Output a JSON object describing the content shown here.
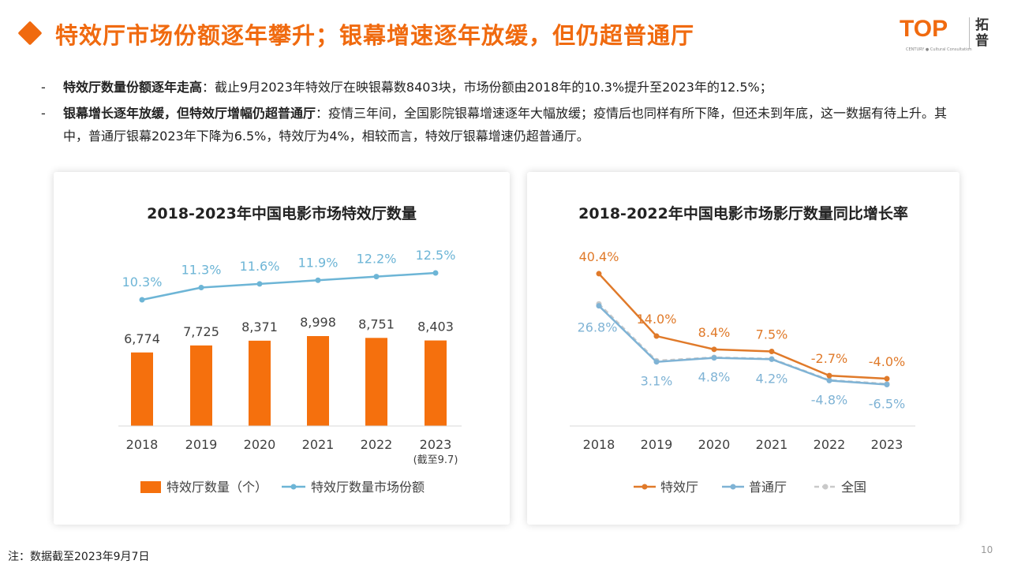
{
  "header": {
    "title": "特效厅市场份额逐年攀升；银幕增速逐年放缓，但仍超普通厅",
    "logo_text": "TOP",
    "logo_cn": "拓普",
    "logo_sub": "CENTURY ● Cultural Consultation"
  },
  "bullets": [
    {
      "bold": "特效厅数量份额逐年走高",
      "text": "：截止9月2023年特效厅在映银幕数8403块，市场份额由2018年的10.3%提升至2023年的12.5%；"
    },
    {
      "bold": "银幕增长逐年放缓，但特效厅增幅仍超普通厅",
      "text": "：疫情三年间，全国影院银幕增速逐年大幅放缓；疫情后也同样有所下降，但还未到年底，这一数据有待上升。其中，普通厅银幕2023年下降为6.5%，特效厅为4%，相较而言，特效厅银幕增速仍超普通厅。"
    }
  ],
  "footnote": "注：数据截至2023年9月7日",
  "page_number": "10",
  "colors": {
    "accent": "#f06a0f",
    "bar": "#f5700d",
    "share_line": "#6db5d6",
    "special_line": "#e07a2a",
    "regular_line": "#7fb3d5",
    "national_line": "#c9c9c9"
  },
  "chart_data": [
    {
      "type": "bar",
      "title": "2018-2023年中国电影市场特效厅数量",
      "categories": [
        "2018",
        "2019",
        "2020",
        "2021",
        "2022",
        "2023"
      ],
      "category_note": "(截至9.7)",
      "series": [
        {
          "name": "特效厅数量（个）",
          "type": "bar",
          "values": [
            6774,
            7725,
            8371,
            8998,
            8751,
            8403
          ],
          "labels": [
            "6,774",
            "7,725",
            "8,371",
            "8,998",
            "8,751",
            "8,403"
          ]
        },
        {
          "name": "特效厅数量市场份额",
          "type": "line",
          "values": [
            10.3,
            11.3,
            11.6,
            11.9,
            12.2,
            12.5
          ],
          "labels": [
            "10.3%",
            "11.3%",
            "11.6%",
            "11.9%",
            "12.2%",
            "12.5%"
          ]
        }
      ],
      "legend_position": "bottom",
      "grid": false
    },
    {
      "type": "line",
      "title": "2018-2022年中国电影市场影厅数量同比增长率",
      "categories": [
        "2018",
        "2019",
        "2020",
        "2021",
        "2022",
        "2023"
      ],
      "series": [
        {
          "name": "特效厅",
          "values": [
            40.4,
            14.0,
            8.4,
            7.5,
            -2.7,
            -4.0
          ],
          "labels": [
            "40.4%",
            "14.0%",
            "8.4%",
            "7.5%",
            "-2.7%",
            "-4.0%"
          ]
        },
        {
          "name": "普通厅",
          "values": [
            26.8,
            3.1,
            4.8,
            4.2,
            -4.8,
            -6.5
          ],
          "labels": [
            "26.8%",
            "3.1%",
            "4.8%",
            "4.2%",
            "-4.8%",
            "-6.5%"
          ]
        },
        {
          "name": "全国",
          "values": [
            27.6,
            3.6,
            5.0,
            4.4,
            -4.6,
            -6.2
          ]
        }
      ],
      "legend_position": "bottom",
      "grid": false
    }
  ]
}
